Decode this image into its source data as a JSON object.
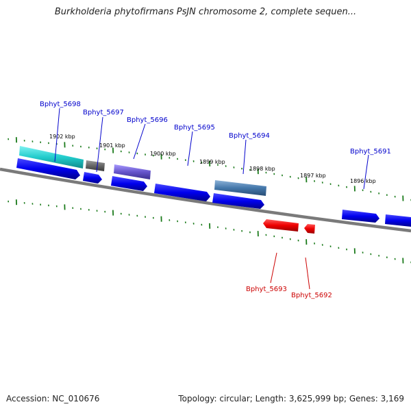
{
  "title": "Burkholderia phytofirmans PsJN chromosome 2, complete sequen...",
  "footer": {
    "accession": "Accession: NC_010676",
    "summary": "Topology: circular; Length: 3,625,999 bp; Genes: 3,169"
  },
  "ticks": [
    {
      "label": "1902 kbp"
    },
    {
      "label": "1901 kbp"
    },
    {
      "label": "1900 kbp"
    },
    {
      "label": "1899 kbp"
    },
    {
      "label": "1898 kbp"
    },
    {
      "label": "1897 kbp"
    },
    {
      "label": "1896 kbp"
    }
  ],
  "genes": [
    {
      "name": "Bphyt_5698",
      "strand": "+",
      "color": "#0000ee"
    },
    {
      "name": "Bphyt_5697",
      "strand": "+",
      "color": "#0000ee"
    },
    {
      "name": "Bphyt_5696",
      "strand": "+",
      "color": "#0000ee"
    },
    {
      "name": "Bphyt_5695",
      "strand": "+",
      "color": "#0000ee"
    },
    {
      "name": "Bphyt_5694",
      "strand": "+",
      "color": "#0000ee"
    },
    {
      "name": "Bphyt_5691",
      "strand": "+",
      "color": "#0000ee"
    },
    {
      "name": "Bphyt_5693",
      "strand": "-",
      "color": "#ee0000"
    },
    {
      "name": "Bphyt_5692",
      "strand": "-",
      "color": "#ee0000"
    }
  ],
  "colors": {
    "forward_gene": "#0000ee",
    "reverse_gene": "#ee0000",
    "backbone": "#808080",
    "tick": "#1a7a1a",
    "feature_cyan": "#22cccc",
    "feature_gray": "#666666",
    "feature_purple": "#6655cc",
    "feature_steel": "#4477aa"
  }
}
